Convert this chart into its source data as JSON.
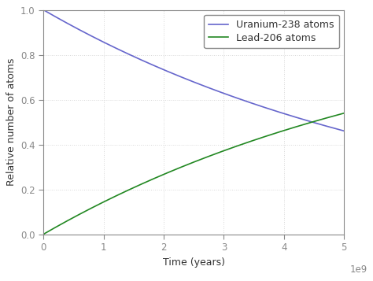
{
  "title": "",
  "xlabel": "Time (years)",
  "ylabel": "Relative number of atoms",
  "xlim": [
    0,
    5000000000.0
  ],
  "ylim": [
    0.0,
    1.0
  ],
  "yticks": [
    0.0,
    0.2,
    0.4,
    0.6,
    0.8,
    1.0
  ],
  "ytick_labels": [
    "0.0",
    "0.2",
    "0.4",
    "0.6",
    "0.8",
    "1.0"
  ],
  "xticks": [
    0,
    1000000000.0,
    2000000000.0,
    3000000000.0,
    4000000000.0,
    5000000000.0
  ],
  "xtick_labels": [
    "0",
    "1",
    "2",
    "3",
    "4",
    "5"
  ],
  "half_life_U238": 4468000000.0,
  "line_color_U238": "#6666cc",
  "line_color_Pb206": "#228822",
  "legend_U238": "Uranium-238 atoms",
  "legend_Pb206": "Lead-206 atoms",
  "background_color": "#ffffff",
  "plot_bg_color": "#ffffff",
  "grid_color": "#d8d8d8",
  "spine_color": "#888888",
  "line_width": 1.2,
  "font_family": "DejaVu Sans",
  "font_size": 9,
  "tick_label_size": 8.5
}
